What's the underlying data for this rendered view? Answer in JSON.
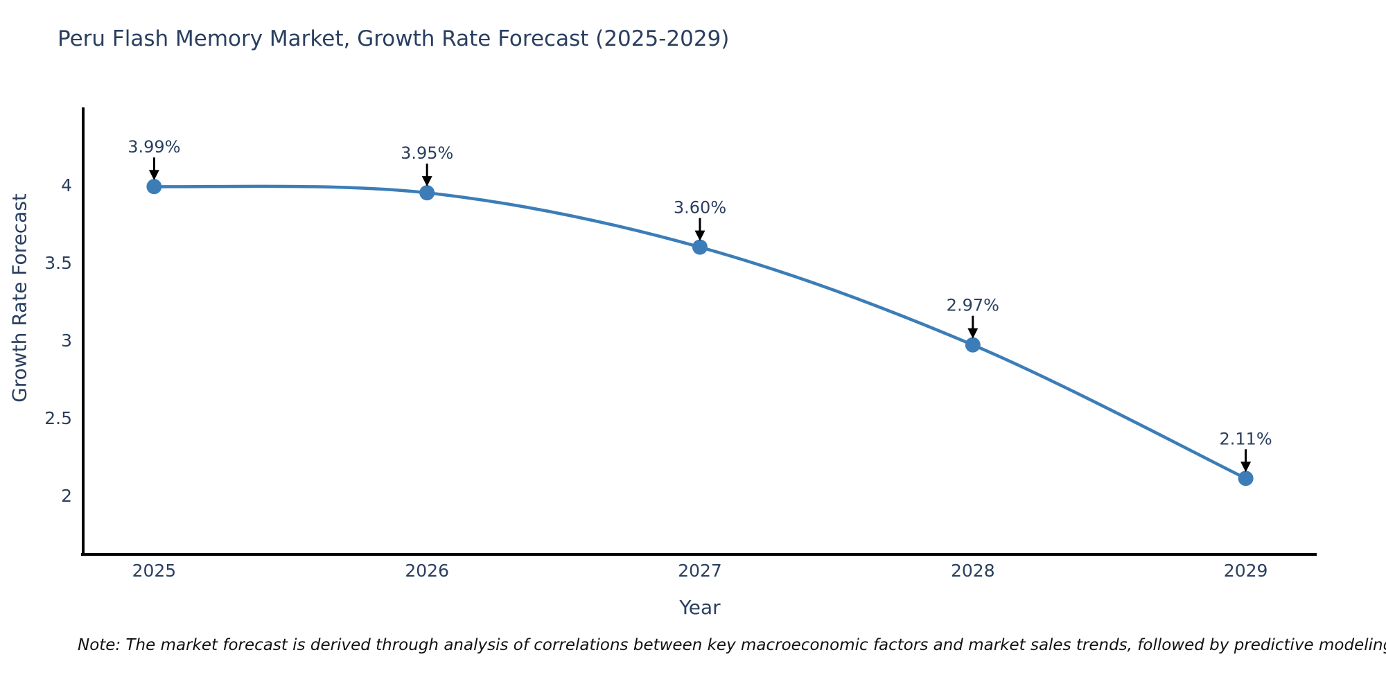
{
  "chart_data": {
    "type": "line",
    "title": "Peru Flash Memory Market, Growth Rate Forecast (2025-2029)",
    "xlabel": "Year",
    "ylabel": "Growth Rate Forecast",
    "x": [
      2025,
      2026,
      2027,
      2028,
      2029
    ],
    "values": [
      3.99,
      3.95,
      3.6,
      2.97,
      2.11
    ],
    "point_labels": [
      "3.99%",
      "3.95%",
      "3.60%",
      "2.97%",
      "2.11%"
    ],
    "x_tick_labels": [
      "2025",
      "2026",
      "2027",
      "2028",
      "2029"
    ],
    "y_ticks": [
      2,
      2.5,
      3,
      3.5,
      4
    ],
    "y_tick_labels": [
      "2",
      "2.5",
      "3",
      "3.5",
      "4"
    ],
    "xlim": [
      2024.74,
      2029.26
    ],
    "ylim": [
      1.62,
      4.5
    ],
    "grid": false,
    "legend_position": "none",
    "line_shape": "spline",
    "line_color": "#3c7db8",
    "marker_color": "#3c7db8",
    "axis_color": "#000000",
    "text_color": "#2a3f5f",
    "annotation_arrow_color": "#000000"
  },
  "note": "Note: The market forecast is derived through analysis of correlations between key macroeconomic factors and market sales trends, followed by predictive modeling to project future sales trends."
}
